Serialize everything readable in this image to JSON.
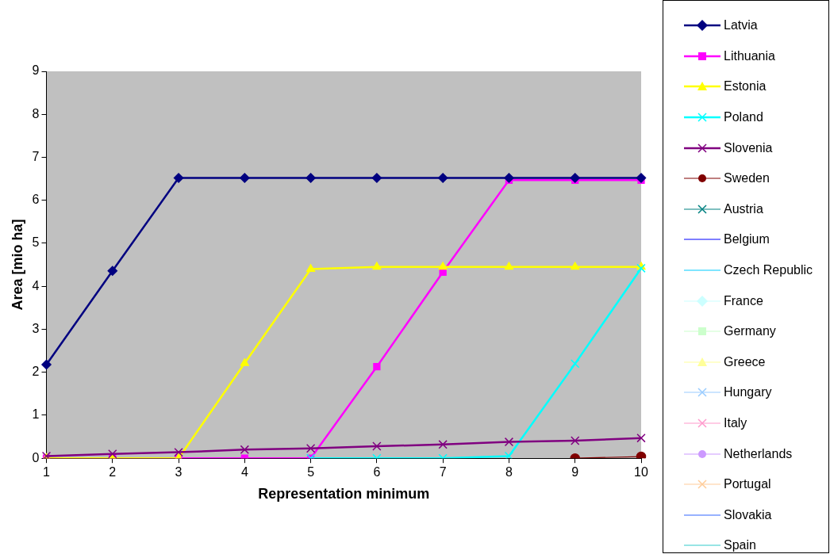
{
  "chart_data": {
    "type": "line",
    "xlabel": "Representation minimum",
    "ylabel": "Area [mio ha]",
    "categories": [
      "1",
      "2",
      "3",
      "4",
      "5",
      "6",
      "7",
      "8",
      "9",
      "10"
    ],
    "ylim": [
      0,
      9
    ],
    "yticks": [
      0,
      1,
      2,
      3,
      4,
      5,
      6,
      7,
      8,
      9
    ],
    "grid": false,
    "legend": "right",
    "line_style": "solid",
    "series": [
      {
        "name": "Latvia",
        "color": "#000080",
        "marker": "diamond",
        "values": [
          2.18,
          4.36,
          6.52,
          6.52,
          6.52,
          6.52,
          6.52,
          6.52,
          6.52,
          6.52
        ]
      },
      {
        "name": "Lithuania",
        "color": "#ff00ff",
        "marker": "square",
        "values": [
          0,
          0,
          0,
          0,
          0,
          2.13,
          4.33,
          6.47,
          6.47,
          6.47
        ]
      },
      {
        "name": "Estonia",
        "color": "#ffff00",
        "marker": "triangle",
        "values": [
          0,
          0,
          0,
          2.21,
          4.4,
          4.45,
          4.45,
          4.45,
          4.45,
          4.45
        ]
      },
      {
        "name": "Poland",
        "color": "#00ffff",
        "marker": "cross",
        "values": [
          null,
          null,
          null,
          null,
          0,
          0,
          0,
          0.05,
          2.2,
          4.42
        ]
      },
      {
        "name": "Slovenia",
        "color": "#800080",
        "marker": "cross",
        "values": [
          0.05,
          0.1,
          0.14,
          0.2,
          0.23,
          0.28,
          0.32,
          0.38,
          0.41,
          0.47
        ]
      },
      {
        "name": "Sweden",
        "color": "#800000",
        "marker": "circle",
        "values": [
          null,
          null,
          null,
          null,
          null,
          null,
          null,
          null,
          0,
          0.04
        ]
      },
      {
        "name": "Austria",
        "color": "#008080",
        "marker": "cross",
        "values": [
          null,
          null,
          null,
          null,
          null,
          null,
          null,
          null,
          null,
          null
        ]
      },
      {
        "name": "Belgium",
        "color": "#0000ff",
        "marker": "none",
        "values": [
          null,
          null,
          null,
          null,
          null,
          null,
          null,
          null,
          null,
          null
        ]
      },
      {
        "name": "Czech Republic",
        "color": "#00ccff",
        "marker": "none",
        "values": [
          null,
          null,
          null,
          null,
          null,
          null,
          null,
          null,
          null,
          null
        ]
      },
      {
        "name": "France",
        "color": "#ccffff",
        "marker": "diamond",
        "values": [
          null,
          null,
          null,
          null,
          null,
          null,
          null,
          null,
          null,
          null
        ]
      },
      {
        "name": "Germany",
        "color": "#ccffcc",
        "marker": "square",
        "values": [
          null,
          null,
          null,
          null,
          null,
          null,
          null,
          null,
          null,
          null
        ]
      },
      {
        "name": "Greece",
        "color": "#ffff99",
        "marker": "triangle",
        "values": [
          null,
          null,
          null,
          null,
          null,
          null,
          null,
          null,
          null,
          null
        ]
      },
      {
        "name": "Hungary",
        "color": "#99ccff",
        "marker": "cross",
        "values": [
          null,
          null,
          null,
          null,
          null,
          null,
          null,
          null,
          null,
          null
        ]
      },
      {
        "name": "Italy",
        "color": "#ff99cc",
        "marker": "cross",
        "values": [
          null,
          null,
          null,
          null,
          null,
          null,
          null,
          null,
          null,
          null
        ]
      },
      {
        "name": "Netherlands",
        "color": "#cc99ff",
        "marker": "circle",
        "values": [
          null,
          null,
          null,
          null,
          null,
          null,
          null,
          null,
          null,
          null
        ]
      },
      {
        "name": "Portugal",
        "color": "#ffcc99",
        "marker": "cross",
        "values": [
          null,
          null,
          null,
          null,
          null,
          null,
          null,
          null,
          null,
          null
        ]
      },
      {
        "name": "Slovakia",
        "color": "#3366ff",
        "marker": "none",
        "values": [
          null,
          null,
          null,
          null,
          null,
          null,
          null,
          null,
          null,
          null
        ]
      },
      {
        "name": "Spain",
        "color": "#33cccc",
        "marker": "none",
        "values": [
          null,
          null,
          null,
          null,
          null,
          null,
          null,
          null,
          null,
          null
        ]
      }
    ]
  }
}
